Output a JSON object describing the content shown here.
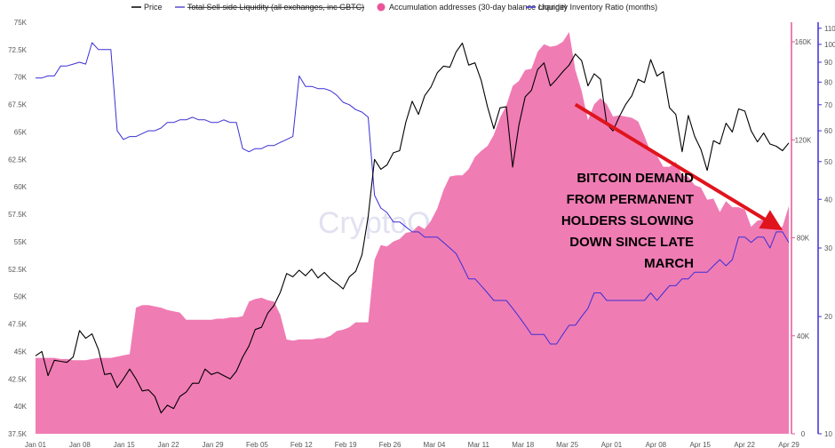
{
  "chart_data": {
    "type": "line",
    "watermark": "CryptoQuant",
    "legend": [
      {
        "name": "Price",
        "color": "#000000",
        "marker": "line",
        "strike": false
      },
      {
        "name": "Total Sell-side Liquidity (all exchanges, inc GBTC)",
        "color": "#5a4fcf",
        "marker": "line",
        "strike": true
      },
      {
        "name": "Accumulation addresses (30-day balance change)",
        "color": "#e8559a",
        "marker": "dot",
        "strike": false
      },
      {
        "name": "Liquidity Inventory Ratio (months)",
        "color": "#3b2fd6",
        "marker": "line",
        "strike": false
      }
    ],
    "x_ticks": [
      "Jan 01",
      "Jan 08",
      "Jan 15",
      "Jan 22",
      "Jan 29",
      "Feb 05",
      "Feb 12",
      "Feb 19",
      "Feb 26",
      "Mar 04",
      "Mar 11",
      "Mar 18",
      "Mar 25",
      "Apr 01",
      "Apr 08",
      "Apr 15",
      "Apr 22",
      "Apr 29"
    ],
    "x_range": [
      0,
      120
    ],
    "y_left": {
      "ticks": [
        "37.5K",
        "40K",
        "42.5K",
        "45K",
        "47.5K",
        "50K",
        "52.5K",
        "55K",
        "57.5K",
        "60K",
        "62.5K",
        "65K",
        "67.5K",
        "70K",
        "72.5K",
        "75K"
      ],
      "range": [
        37500,
        75000
      ]
    },
    "y_right1": {
      "ticks": [
        "0",
        "40K",
        "80K",
        "120K",
        "160K"
      ],
      "values": [
        0,
        40000,
        80000,
        120000,
        160000
      ],
      "range": [
        0,
        168000
      ],
      "color": "#e8559a"
    },
    "y_right2": {
      "ticks": [
        "10",
        "20",
        "30",
        "40",
        "50",
        "60",
        "70",
        "80",
        "90",
        "100",
        "110"
      ],
      "values": [
        10,
        20,
        30,
        40,
        50,
        60,
        70,
        80,
        90,
        100,
        110
      ],
      "scale": "log",
      "range": [
        10,
        114
      ],
      "color": "#3b2fd6"
    },
    "series": [
      {
        "name": "Price",
        "axis": "left",
        "kind": "line",
        "color": "#000000",
        "x": [
          0,
          1,
          2,
          3,
          4,
          5,
          6,
          7,
          8,
          9,
          10,
          11,
          12,
          13,
          14,
          15,
          16,
          17,
          18,
          19,
          20,
          21,
          22,
          23,
          24,
          25,
          26,
          27,
          28,
          29,
          30,
          31,
          32,
          33,
          34,
          35,
          36,
          37,
          38,
          39,
          40,
          41,
          42,
          43,
          44,
          45,
          46,
          47,
          48,
          49,
          50,
          51,
          52,
          53,
          54,
          55,
          56,
          57,
          58,
          59,
          60,
          61,
          62,
          63,
          64,
          65,
          66,
          67,
          68,
          69,
          70,
          71,
          72,
          73,
          74,
          75,
          76,
          77,
          78,
          79,
          80,
          81,
          82,
          83,
          84,
          85,
          86,
          87,
          88,
          89,
          90,
          91,
          92,
          93,
          94,
          95,
          96,
          97,
          98,
          99,
          100,
          101,
          102,
          103,
          104,
          105,
          106,
          107,
          108,
          109,
          110,
          111,
          112,
          113,
          114,
          115,
          116,
          117,
          118,
          119,
          120
        ],
        "y": [
          44600,
          45000,
          42800,
          44200,
          44100,
          44000,
          44500,
          46900,
          46200,
          46600,
          45200,
          42900,
          43000,
          41700,
          42500,
          43400,
          42500,
          41400,
          41500,
          40900,
          39400,
          40100,
          39800,
          40900,
          41300,
          42100,
          42100,
          43400,
          42900,
          43100,
          42800,
          42500,
          43200,
          44500,
          45500,
          47000,
          47200,
          48500,
          49200,
          50400,
          52100,
          51800,
          52400,
          51900,
          52500,
          51700,
          52200,
          51600,
          51200,
          50700,
          51800,
          52300,
          53800,
          57300,
          62500,
          61600,
          62000,
          63100,
          63300,
          65900,
          67800,
          66600,
          68300,
          69100,
          70400,
          71000,
          70900,
          72300,
          73100,
          71100,
          71300,
          69700,
          67300,
          65300,
          67200,
          67300,
          61800,
          65600,
          68200,
          68800,
          70700,
          71300,
          69200,
          69800,
          70500,
          71100,
          72100,
          71500,
          69200,
          70300,
          69800,
          65700,
          65100,
          66400,
          67500,
          68300,
          69800,
          69500,
          71600,
          70100,
          70500,
          67200,
          66600,
          63200,
          66500,
          64600,
          63400,
          61500,
          64200,
          63900,
          65800,
          65000,
          67100,
          66900,
          65100,
          64100,
          64900,
          63900,
          63700,
          63300,
          64000
        ]
      },
      {
        "name": "Accumulation addresses (30-day balance change)",
        "axis": "right1",
        "kind": "area",
        "color": "#f07cb4",
        "x": [
          0,
          1,
          2,
          3,
          4,
          5,
          6,
          7,
          8,
          9,
          10,
          11,
          12,
          13,
          14,
          15,
          16,
          17,
          18,
          19,
          20,
          21,
          22,
          23,
          24,
          25,
          26,
          27,
          28,
          29,
          30,
          31,
          32,
          33,
          34,
          35,
          36,
          37,
          38,
          39,
          40,
          41,
          42,
          43,
          44,
          45,
          46,
          47,
          48,
          49,
          50,
          51,
          52,
          53,
          54,
          55,
          56,
          57,
          58,
          59,
          60,
          61,
          62,
          63,
          64,
          65,
          66,
          67,
          68,
          69,
          70,
          71,
          72,
          73,
          74,
          75,
          76,
          77,
          78,
          79,
          80,
          81,
          82,
          83,
          84,
          85,
          86,
          87,
          88,
          89,
          90,
          91,
          92,
          93,
          94,
          95,
          96,
          97,
          98,
          99,
          100,
          101,
          102,
          103,
          104,
          105,
          106,
          107,
          108,
          109,
          110,
          111,
          112,
          113,
          114,
          115,
          116,
          117,
          118,
          119,
          120
        ],
        "y": [
          31000,
          31000,
          31000,
          31000,
          30500,
          30500,
          30000,
          30000,
          30000,
          30500,
          31000,
          31000,
          31000,
          31500,
          32000,
          32500,
          51500,
          52500,
          52500,
          52000,
          51500,
          50500,
          50000,
          49500,
          46500,
          46500,
          46500,
          46500,
          46500,
          47000,
          47000,
          47500,
          47500,
          48000,
          54000,
          55000,
          55500,
          54500,
          54000,
          48500,
          38500,
          38000,
          38500,
          38500,
          38500,
          39000,
          39000,
          40000,
          42000,
          42500,
          43500,
          45500,
          45500,
          45500,
          71000,
          77000,
          76500,
          78500,
          79500,
          82000,
          82500,
          85000,
          83500,
          87000,
          92000,
          99500,
          105000,
          105500,
          105500,
          108000,
          113000,
          115500,
          117500,
          122000,
          129000,
          134000,
          142000,
          144000,
          148500,
          149000,
          156000,
          159000,
          158000,
          158500,
          160000,
          164000,
          148500,
          140000,
          128000,
          134500,
          137000,
          134500,
          129500,
          130000,
          129500,
          129000,
          127500,
          121500,
          115000,
          113500,
          109000,
          109000,
          111000,
          105500,
          105000,
          101500,
          100500,
          95500,
          96000,
          90500,
          95000,
          92500,
          92500,
          91500,
          84500,
          87000,
          87500,
          85500,
          84000,
          84500,
          93000
        ]
      },
      {
        "name": "Liquidity Inventory Ratio (months)",
        "axis": "right2",
        "kind": "line",
        "color": "#3b2fd6",
        "x": [
          0,
          1,
          2,
          3,
          4,
          5,
          6,
          7,
          8,
          9,
          10,
          11,
          12,
          13,
          14,
          15,
          16,
          17,
          18,
          19,
          20,
          21,
          22,
          23,
          24,
          25,
          26,
          27,
          28,
          29,
          30,
          31,
          32,
          33,
          34,
          35,
          36,
          37,
          38,
          39,
          40,
          41,
          42,
          43,
          44,
          45,
          46,
          47,
          48,
          49,
          50,
          51,
          52,
          53,
          54,
          55,
          56,
          57,
          58,
          59,
          60,
          61,
          62,
          63,
          64,
          65,
          66,
          67,
          68,
          69,
          70,
          71,
          72,
          73,
          74,
          75,
          76,
          77,
          78,
          79,
          80,
          81,
          82,
          83,
          84,
          85,
          86,
          87,
          88,
          89,
          90,
          91,
          92,
          93,
          94,
          95,
          96,
          97,
          98,
          99,
          100,
          101,
          102,
          103,
          104,
          105,
          106,
          107,
          108,
          109,
          110,
          111,
          112,
          113,
          114,
          115,
          116,
          117,
          118,
          119,
          120
        ],
        "y": [
          82,
          82,
          83,
          83,
          88,
          88,
          89,
          90,
          89,
          101,
          97,
          97,
          97,
          60,
          57,
          58,
          58,
          59,
          60,
          60,
          61,
          63,
          63,
          64,
          64,
          65,
          64,
          64,
          63,
          63,
          64,
          63,
          63,
          54,
          53,
          54,
          54,
          55,
          55,
          56,
          57,
          58,
          83,
          78,
          78,
          77,
          77,
          76,
          74,
          71,
          70,
          68,
          67,
          65,
          41,
          38,
          37,
          35,
          35,
          34,
          33,
          33,
          32,
          32,
          32,
          31,
          30,
          29,
          27,
          25,
          25,
          24,
          23,
          22,
          22,
          22,
          21,
          20,
          19,
          18,
          18,
          18,
          17,
          17,
          18,
          19,
          19,
          20,
          21,
          23,
          23,
          22,
          22,
          22,
          22,
          22,
          22,
          22,
          23,
          22,
          23,
          24,
          24,
          25,
          25,
          26,
          26,
          26,
          27,
          28,
          27,
          28,
          32,
          32,
          31,
          32,
          32,
          30,
          33,
          33,
          31
        ]
      }
    ],
    "annotation": {
      "lines": [
        "BITCOIN DEMAND",
        "FROM PERMANENT",
        "HOLDERS SLOWING",
        "DOWN SINCE LATE",
        "MARCH"
      ],
      "color": "#000000",
      "arrow": {
        "from_x": 86,
        "from_y_left": 67500,
        "to_x": 120,
        "to_y_left": 56300,
        "color": "#e0141c"
      }
    }
  }
}
